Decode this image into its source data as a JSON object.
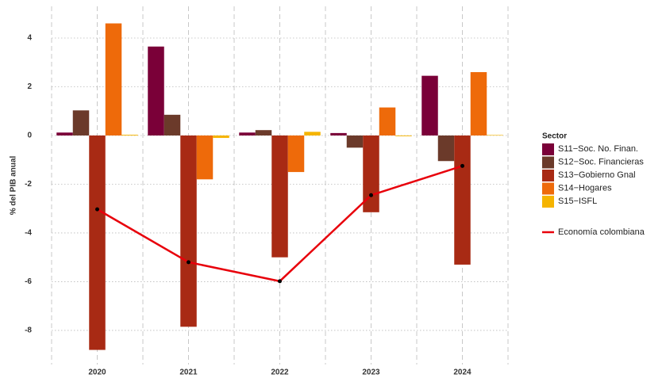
{
  "chart_data": {
    "type": "bar",
    "y_label": "% del PIB anual",
    "categories": [
      "2020",
      "2021",
      "2022",
      "2023",
      "2024"
    ],
    "series": [
      {
        "name": "S11−Soc. No. Finan.",
        "color": "#7a0038",
        "values": [
          0.12,
          3.65,
          0.12,
          0.1,
          2.45
        ]
      },
      {
        "name": "S12−Soc. Financieras",
        "color": "#6b3a2a",
        "values": [
          1.03,
          0.85,
          0.22,
          -0.5,
          -1.05
        ]
      },
      {
        "name": "S13−Gobierno Gnal",
        "color": "#a82a14",
        "values": [
          -8.8,
          -7.85,
          -5.0,
          -3.15,
          -5.3
        ]
      },
      {
        "name": "S14−Hogares",
        "color": "#ee6a0a",
        "values": [
          4.6,
          -1.8,
          -1.5,
          1.15,
          2.6
        ]
      },
      {
        "name": "S15−ISFL",
        "color": "#f5b400",
        "values": [
          0.03,
          -0.1,
          0.15,
          -0.03,
          0.02
        ]
      }
    ],
    "line": {
      "name": "Economía colombiana",
      "color": "#e8000b",
      "values": [
        -3.03,
        -5.2,
        -5.98,
        -2.45,
        -1.25
      ]
    },
    "legend_title": "Sector",
    "ylim": [
      -9.4,
      5.3
    ],
    "yticks": [
      -8,
      -6,
      -4,
      -2,
      0,
      2,
      4
    ],
    "grid": true
  }
}
